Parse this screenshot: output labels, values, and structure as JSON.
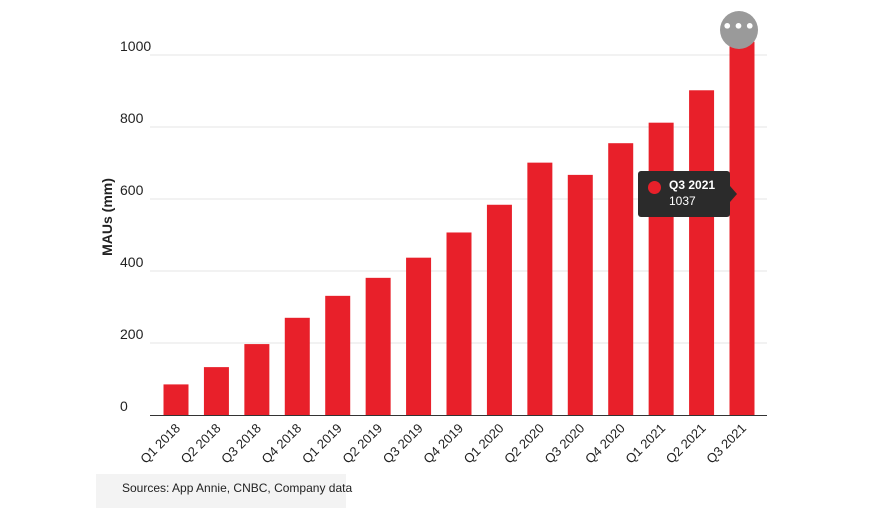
{
  "chart_data": {
    "type": "bar",
    "ylabel": "MAUs (mm)",
    "xlabel": "",
    "ylim": [
      0,
      1000
    ],
    "yticks": [
      0,
      200,
      400,
      600,
      800,
      1000
    ],
    "categories": [
      "Q1 2018",
      "Q2 2018",
      "Q3 2018",
      "Q4 2018",
      "Q1 2019",
      "Q2 2019",
      "Q3 2019",
      "Q4 2019",
      "Q1 2020",
      "Q2 2020",
      "Q3 2020",
      "Q4 2020",
      "Q1 2021",
      "Q2 2021",
      "Q3 2021"
    ],
    "values": [
      85,
      133,
      197,
      270,
      331,
      381,
      437,
      507,
      584,
      701,
      667,
      755,
      812,
      902,
      1037
    ],
    "bar_color": "#e8202a",
    "grid": true,
    "tooltip": {
      "category": "Q3 2021",
      "value": "1037"
    }
  },
  "footer": {
    "source": "Sources: App Annie, CNBC, Company data"
  },
  "menu": {
    "icon": "more-horizontal-icon",
    "glyph": "•••"
  },
  "colors": {
    "tooltip_bg": "#2b2b2b",
    "grid": "#e6e6e6",
    "menu_bg": "#9a9a9a"
  }
}
